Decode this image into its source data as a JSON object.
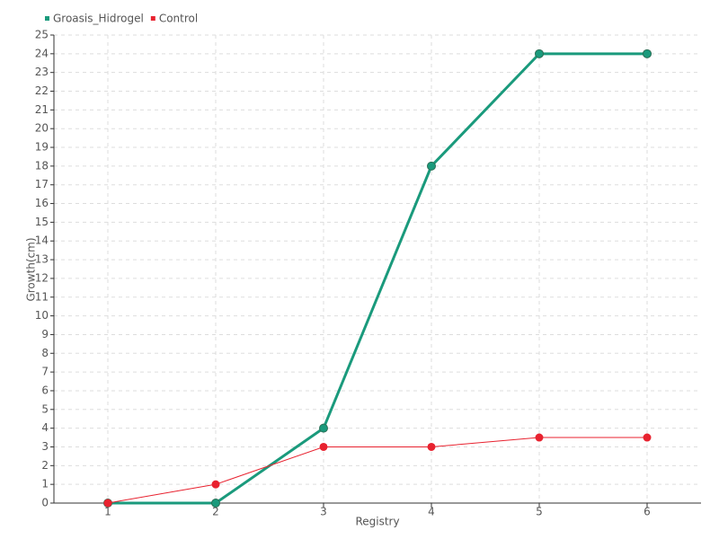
{
  "chart_data": {
    "type": "line",
    "x_label": "Registry",
    "y_label": "Growth(cm)",
    "x": [
      1,
      2,
      3,
      4,
      5,
      6
    ],
    "xlim": [
      0.5,
      6.5
    ],
    "xticks": [
      1,
      2,
      3,
      4,
      5,
      6
    ],
    "ylim": [
      0,
      25
    ],
    "yticks": [
      0,
      1,
      2,
      3,
      4,
      5,
      6,
      7,
      8,
      9,
      10,
      11,
      12,
      13,
      14,
      15,
      16,
      17,
      18,
      19,
      20,
      21,
      22,
      23,
      24,
      25
    ],
    "grid": true,
    "legend": "top-left",
    "series": [
      {
        "name": "Groasis_Hidrogel",
        "color": "#1a9a7c",
        "values": [
          0,
          0,
          4,
          18,
          24,
          24
        ]
      },
      {
        "name": "Control",
        "color": "#e8222f",
        "values": [
          0,
          1,
          3,
          3,
          3.5,
          3.5
        ]
      }
    ]
  }
}
